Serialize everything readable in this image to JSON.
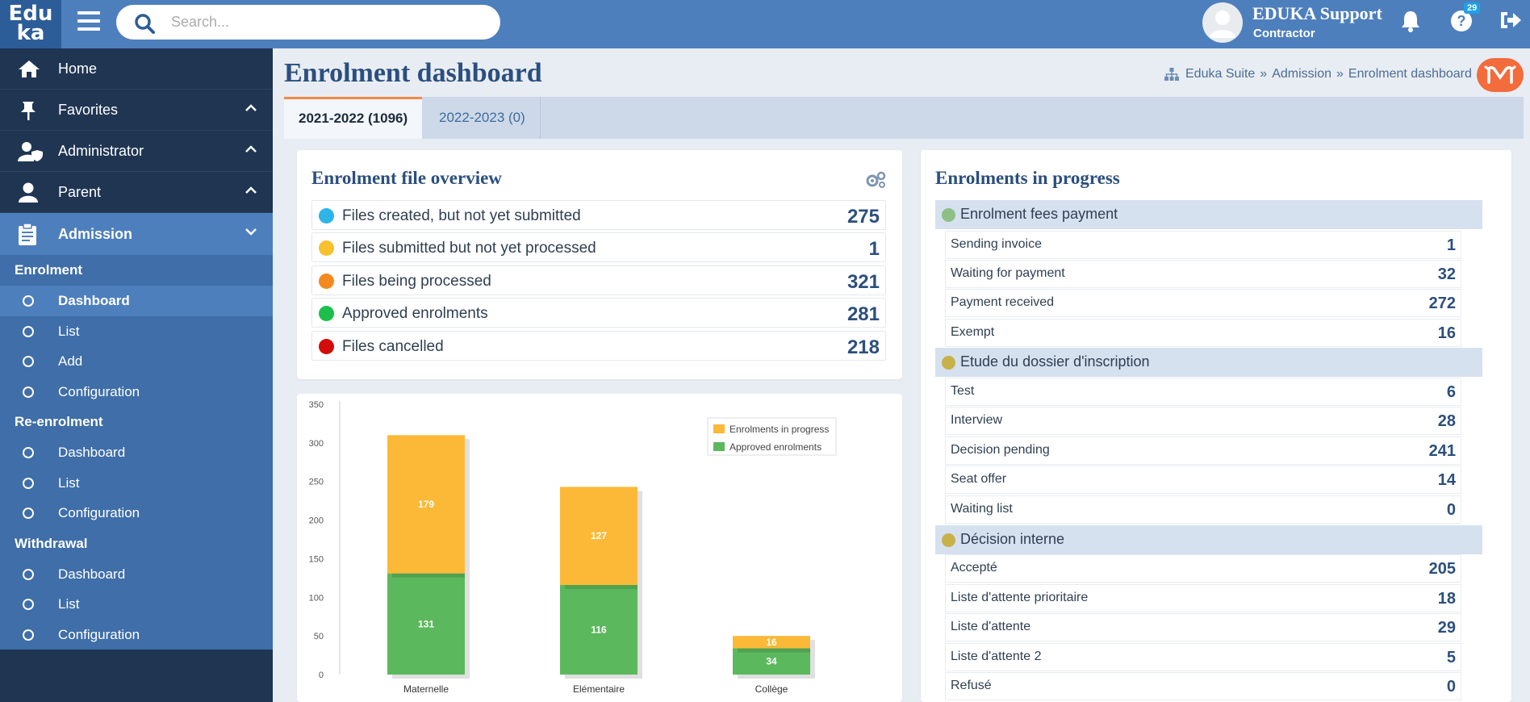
{
  "app": {
    "logo_top": "Edu",
    "logo_bottom": "ka"
  },
  "search": {
    "placeholder": "Search..."
  },
  "user": {
    "name": "EDUKA Support",
    "role": "Contractor",
    "help_badge": "29"
  },
  "sidebar": {
    "items": [
      {
        "label": "Home",
        "icon": "home-icon"
      },
      {
        "label": "Favorites",
        "icon": "pin-icon"
      },
      {
        "label": "Administrator",
        "icon": "user-shield-icon"
      },
      {
        "label": "Parent",
        "icon": "user-icon"
      },
      {
        "label": "Admission",
        "icon": "clipboard-icon"
      }
    ],
    "admission": {
      "enrolment": {
        "heading": "Enrolment",
        "items": [
          "Dashboard",
          "List",
          "Add",
          "Configuration"
        ]
      },
      "reenrolment": {
        "heading": "Re-enrolment",
        "items": [
          "Dashboard",
          "List",
          "Configuration"
        ]
      },
      "withdrawal": {
        "heading": "Withdrawal",
        "items": [
          "Dashboard",
          "List",
          "Configuration"
        ]
      }
    }
  },
  "page": {
    "title": "Enrolment dashboard",
    "breadcrumb": [
      "Eduka Suite",
      "Admission",
      "Enrolment dashboard"
    ],
    "tabs": [
      "2021-2022 (1096)",
      "2022-2023 (0)"
    ]
  },
  "overview": {
    "title": "Enrolment file overview",
    "rows": [
      {
        "label": "Files created, but not yet submitted",
        "value": "275",
        "color": "#2eb4e6"
      },
      {
        "label": "Files submitted but not yet processed",
        "value": "1",
        "color": "#f9c02f"
      },
      {
        "label": "Files being processed",
        "value": "321",
        "color": "#f48a1e"
      },
      {
        "label": "Approved enrolments",
        "value": "281",
        "color": "#1cbf4a"
      },
      {
        "label": "Files cancelled",
        "value": "218",
        "color": "#d20b0b"
      }
    ]
  },
  "progress": {
    "title": "Enrolments in progress",
    "groups": [
      {
        "title": "Enrolment fees payment",
        "rows": [
          {
            "label": "Sending invoice",
            "value": "1"
          },
          {
            "label": "Waiting for payment",
            "value": "32"
          },
          {
            "label": "Payment received",
            "value": "272"
          },
          {
            "label": "Exempt",
            "value": "16"
          }
        ]
      },
      {
        "title": "Etude du dossier d'inscription",
        "rows": [
          {
            "label": "Test",
            "value": "6"
          },
          {
            "label": "Interview",
            "value": "28"
          },
          {
            "label": "Decision pending",
            "value": "241"
          },
          {
            "label": "Seat offer",
            "value": "14"
          },
          {
            "label": "Waiting list",
            "value": "0"
          }
        ]
      },
      {
        "title": "Décision interne",
        "rows": [
          {
            "label": "Accepté",
            "value": "205"
          },
          {
            "label": "Liste d'attente prioritaire",
            "value": "18"
          },
          {
            "label": "Liste d'attente",
            "value": "29"
          },
          {
            "label": "Liste d'attente 2",
            "value": "5"
          },
          {
            "label": "Refusé",
            "value": "0"
          }
        ]
      }
    ]
  },
  "chart_data": {
    "type": "bar",
    "stacked": true,
    "categories": [
      "Maternelle",
      "Elémentaire",
      "Collège"
    ],
    "series": [
      {
        "name": "Approved enrolments",
        "values": [
          131,
          116,
          34
        ],
        "color": "#5cb85c"
      },
      {
        "name": "Enrolments in progress",
        "values": [
          179,
          127,
          16
        ],
        "color": "#fbb937"
      }
    ],
    "ylim": [
      0,
      350
    ],
    "yticks": [
      0,
      50,
      100,
      150,
      200,
      250,
      300,
      350
    ],
    "legend": "top-right",
    "grid": false
  }
}
